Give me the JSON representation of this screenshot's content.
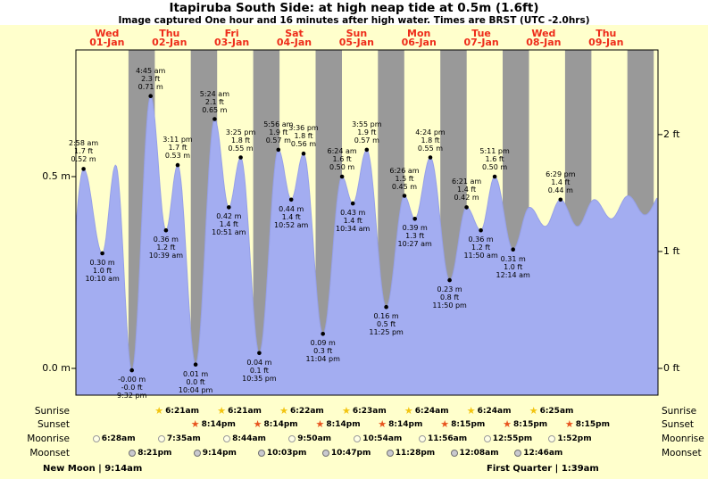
{
  "colors": {
    "background": "#ffffcc",
    "night_band": "#999999",
    "tide_fill": "#a3adf1",
    "tide_edge": "#96a0e8",
    "day_label_red": "#ee2c1a",
    "text": "#000000"
  },
  "row_labels": [
    "Sunrise",
    "Sunset",
    "Moonrise",
    "Moonset"
  ],
  "moon_phases": {
    "left": "New Moon | 9:14am",
    "right": "First Quarter | 1:39am"
  },
  "chart_data": {
    "type": "area",
    "title": "Itapiruba South Side: at high  neap tide at 0.5m (1.6ft)",
    "subtitle": "Image captured One hour and 16 minutes after high water. Times are BRST (UTC -2.0hrs)",
    "x_origin": "Wed 01-Jan 00:00",
    "x_domain_hours": [
      0,
      224
    ],
    "days": [
      {
        "name": "Wed",
        "date": "01-Jan"
      },
      {
        "name": "Thu",
        "date": "02-Jan"
      },
      {
        "name": "Fri",
        "date": "03-Jan"
      },
      {
        "name": "Sat",
        "date": "04-Jan"
      },
      {
        "name": "Sun",
        "date": "05-Jan"
      },
      {
        "name": "Mon",
        "date": "06-Jan"
      },
      {
        "name": "Tue",
        "date": "07-Jan"
      },
      {
        "name": "Wed",
        "date": "08-Jan"
      },
      {
        "name": "Thu",
        "date": "09-Jan"
      }
    ],
    "y_axis_left": {
      "unit": "m",
      "ticks": [
        {
          "label": "0.5 m",
          "value": 0.5
        },
        {
          "label": "0.0 m",
          "value": 0.0
        }
      ]
    },
    "y_axis_right": {
      "unit": "ft",
      "ticks": [
        {
          "label": "2 ft",
          "value": 0.6096
        },
        {
          "label": "1 ft",
          "value": 0.3048
        },
        {
          "label": "0 ft",
          "value": 0.0
        }
      ]
    },
    "night_bands": {
      "start_hour": 20.23,
      "end_hour": 30.37,
      "period_hours": 24,
      "count": 9
    },
    "tide_events": [
      {
        "t": -3.0,
        "v": 0.22,
        "type": "low",
        "labels": null
      },
      {
        "t": 2.97,
        "v": 0.52,
        "type": "high",
        "labels": [
          "2:58 am",
          "1.7 ft",
          "0.52 m"
        ]
      },
      {
        "t": 10.17,
        "v": 0.3,
        "type": "low",
        "labels": [
          "0.30 m",
          "1.0 ft",
          "10:10 am"
        ]
      },
      {
        "t": 15.3,
        "v": 0.53,
        "type": "high",
        "labels": null
      },
      {
        "t": 21.53,
        "v": -0.005,
        "type": "low",
        "labels": [
          "-0.00 m",
          "-0.0 ft",
          "9:32 pm"
        ]
      },
      {
        "t": 28.75,
        "v": 0.71,
        "type": "high",
        "labels": [
          "4:45 am",
          "2.3 ft",
          "0.71 m"
        ]
      },
      {
        "t": 34.65,
        "v": 0.36,
        "type": "low",
        "labels": [
          "0.36 m",
          "1.2 ft",
          "10:39 am"
        ]
      },
      {
        "t": 39.18,
        "v": 0.53,
        "type": "high",
        "labels": [
          "3:11 pm",
          "1.7 ft",
          "0.53 m"
        ]
      },
      {
        "t": 46.07,
        "v": 0.01,
        "type": "low",
        "labels": [
          "0.01 m",
          "0.0 ft",
          "10:04 pm"
        ]
      },
      {
        "t": 53.4,
        "v": 0.65,
        "type": "high",
        "labels": [
          "5:24 am",
          "2.1 ft",
          "0.65 m"
        ]
      },
      {
        "t": 58.85,
        "v": 0.42,
        "type": "low",
        "labels": [
          "0.42 m",
          "1.4 ft",
          "10:51 am"
        ]
      },
      {
        "t": 63.42,
        "v": 0.55,
        "type": "high",
        "labels": [
          "3:25 pm",
          "1.8 ft",
          "0.55 m"
        ]
      },
      {
        "t": 70.58,
        "v": 0.04,
        "type": "low",
        "labels": [
          "0.04 m",
          "0.1 ft",
          "10:35 pm"
        ]
      },
      {
        "t": 77.93,
        "v": 0.57,
        "type": "high",
        "labels": [
          "5:56 am",
          "1.9 ft",
          "0.57 m"
        ]
      },
      {
        "t": 82.87,
        "v": 0.44,
        "type": "low",
        "labels": [
          "0.44 m",
          "1.4 ft",
          "10:52 am"
        ]
      },
      {
        "t": 87.6,
        "v": 0.56,
        "type": "high",
        "labels": [
          "3:36 pm",
          "1.8 ft",
          "0.56 m"
        ]
      },
      {
        "t": 95.07,
        "v": 0.09,
        "type": "low",
        "labels": [
          "0.09 m",
          "0.3 ft",
          "11:04 pm"
        ]
      },
      {
        "t": 102.4,
        "v": 0.5,
        "type": "high",
        "labels": [
          "6:24 am",
          "1.6 ft",
          "0.50 m"
        ]
      },
      {
        "t": 106.57,
        "v": 0.43,
        "type": "low",
        "labels": [
          "0.43 m",
          "1.4 ft",
          "10:34 am"
        ]
      },
      {
        "t": 111.92,
        "v": 0.57,
        "type": "high",
        "labels": [
          "3:55 pm",
          "1.9 ft",
          "0.57 m"
        ]
      },
      {
        "t": 119.42,
        "v": 0.16,
        "type": "low",
        "labels": [
          "0.16 m",
          "0.5 ft",
          "11:25 pm"
        ]
      },
      {
        "t": 126.43,
        "v": 0.45,
        "type": "high",
        "labels": [
          "6:26 am",
          "1.5 ft",
          "0.45 m"
        ]
      },
      {
        "t": 130.45,
        "v": 0.39,
        "type": "low",
        "labels": [
          "0.39 m",
          "1.3 ft",
          "10:27 am"
        ]
      },
      {
        "t": 136.4,
        "v": 0.55,
        "type": "high",
        "labels": [
          "4:24 pm",
          "1.8 ft",
          "0.55 m"
        ]
      },
      {
        "t": 143.83,
        "v": 0.23,
        "type": "low",
        "labels": [
          "0.23 m",
          "0.8 ft",
          "11:50 pm"
        ]
      },
      {
        "t": 150.35,
        "v": 0.42,
        "type": "high",
        "labels": [
          "6:21 am",
          "1.4 ft",
          "0.42 m"
        ]
      },
      {
        "t": 155.83,
        "v": 0.36,
        "type": "low",
        "labels": [
          "0.36 m",
          "1.2 ft",
          "11:50 am"
        ]
      },
      {
        "t": 161.18,
        "v": 0.5,
        "type": "high",
        "labels": [
          "5:11 pm",
          "1.6 ft",
          "0.50 m"
        ]
      },
      {
        "t": 168.23,
        "v": 0.31,
        "type": "low",
        "labels": [
          "0.31 m",
          "1.0 ft",
          "12:14 am"
        ]
      },
      {
        "t": 174.6,
        "v": 0.42,
        "type": "high",
        "labels": null
      },
      {
        "t": 180.6,
        "v": 0.37,
        "type": "low",
        "labels": null
      },
      {
        "t": 186.48,
        "v": 0.44,
        "type": "high",
        "labels": [
          "6:29 pm",
          "1.4 ft",
          "0.44 m"
        ]
      },
      {
        "t": 193.0,
        "v": 0.37,
        "type": "low",
        "labels": null
      },
      {
        "t": 199.5,
        "v": 0.44,
        "type": "high",
        "labels": null
      },
      {
        "t": 206.0,
        "v": 0.39,
        "type": "low",
        "labels": null
      },
      {
        "t": 212.5,
        "v": 0.45,
        "type": "high",
        "labels": null
      },
      {
        "t": 219.0,
        "v": 0.4,
        "type": "low",
        "labels": null
      },
      {
        "t": 226.0,
        "v": 0.46,
        "type": "high",
        "labels": null
      }
    ]
  },
  "astro": {
    "rows": [
      {
        "name": "Sunrise",
        "icon": "sunrise-star-icon",
        "icon_color": "#f2c410",
        "events": [
          {
            "day": 1,
            "time": "6:21am"
          },
          {
            "day": 2,
            "time": "6:21am"
          },
          {
            "day": 3,
            "time": "6:22am"
          },
          {
            "day": 4,
            "time": "6:23am"
          },
          {
            "day": 5,
            "time": "6:24am"
          },
          {
            "day": 6,
            "time": "6:24am"
          },
          {
            "day": 7,
            "time": "6:25am"
          }
        ]
      },
      {
        "name": "Sunset",
        "icon": "sunset-star-icon",
        "icon_color": "#e8541e",
        "events": [
          {
            "day": 1,
            "time": "8:14pm"
          },
          {
            "day": 2,
            "time": "8:14pm"
          },
          {
            "day": 3,
            "time": "8:14pm"
          },
          {
            "day": 4,
            "time": "8:14pm"
          },
          {
            "day": 5,
            "time": "8:15pm"
          },
          {
            "day": 6,
            "time": "8:15pm"
          },
          {
            "day": 7,
            "time": "8:15pm"
          }
        ]
      },
      {
        "name": "Moonrise",
        "icon": "moonrise-circle-icon",
        "icon_fill": "#ffffe6",
        "icon_border": "#9a9a9a",
        "events": [
          {
            "day": 0,
            "time": "6:28am"
          },
          {
            "day": 1,
            "time": "7:35am"
          },
          {
            "day": 2,
            "time": "8:44am"
          },
          {
            "day": 3,
            "time": "9:50am"
          },
          {
            "day": 4,
            "time": "10:54am"
          },
          {
            "day": 5,
            "time": "11:56am"
          },
          {
            "day": 6,
            "time": "12:55pm"
          },
          {
            "day": 7,
            "time": "1:52pm"
          }
        ]
      },
      {
        "name": "Moonset",
        "icon": "moonset-circle-icon",
        "icon_fill": "#c9c9cf",
        "icon_border": "#707070",
        "events": [
          {
            "day": 0,
            "time": "8:21pm"
          },
          {
            "day": 1,
            "time": "9:14pm"
          },
          {
            "day": 2,
            "time": "10:03pm"
          },
          {
            "day": 3,
            "time": "10:47pm"
          },
          {
            "day": 4,
            "time": "11:28pm"
          },
          {
            "day": 6,
            "time": "12:08am"
          },
          {
            "day": 7,
            "time": "12:46am"
          }
        ]
      }
    ]
  }
}
